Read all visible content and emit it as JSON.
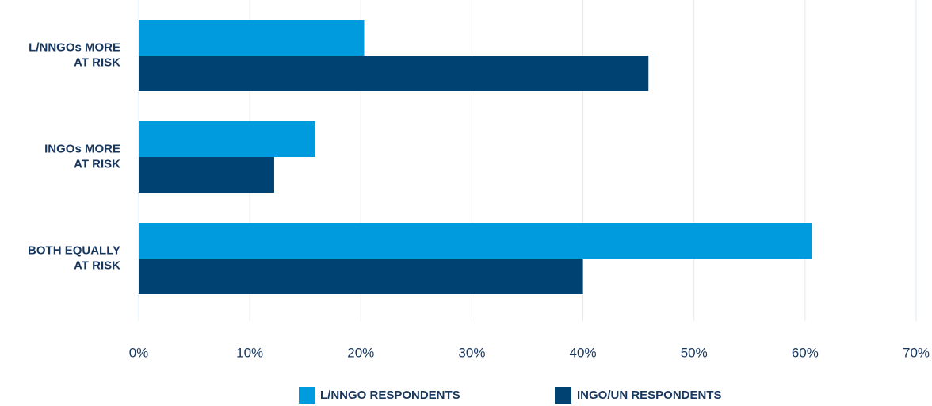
{
  "chart_data": {
    "type": "bar",
    "orientation": "horizontal",
    "categories": [
      [
        "L/NNGOs MORE",
        "AT RISK"
      ],
      [
        "INGOs MORE",
        "AT RISK"
      ],
      [
        "BOTH EQUALLY",
        "AT RISK"
      ]
    ],
    "series": [
      {
        "name": "L/NNGO RESPONDENTS",
        "color": "#009bde",
        "values": [
          20.3,
          15.9,
          60.6
        ]
      },
      {
        "name": "INGO/UN RESPONDENTS",
        "color": "#004373",
        "values": [
          45.9,
          12.2,
          40.0
        ]
      }
    ],
    "xlim": [
      0,
      70
    ],
    "xticks": [
      0,
      10,
      20,
      30,
      40,
      50,
      60,
      70
    ],
    "tick_suffix": "%",
    "grid": "vertical",
    "grid_color": "#dcebf5",
    "text_color": "#17375e",
    "legend_position": "bottom-center",
    "title": "",
    "xlabel": "",
    "ylabel": ""
  }
}
